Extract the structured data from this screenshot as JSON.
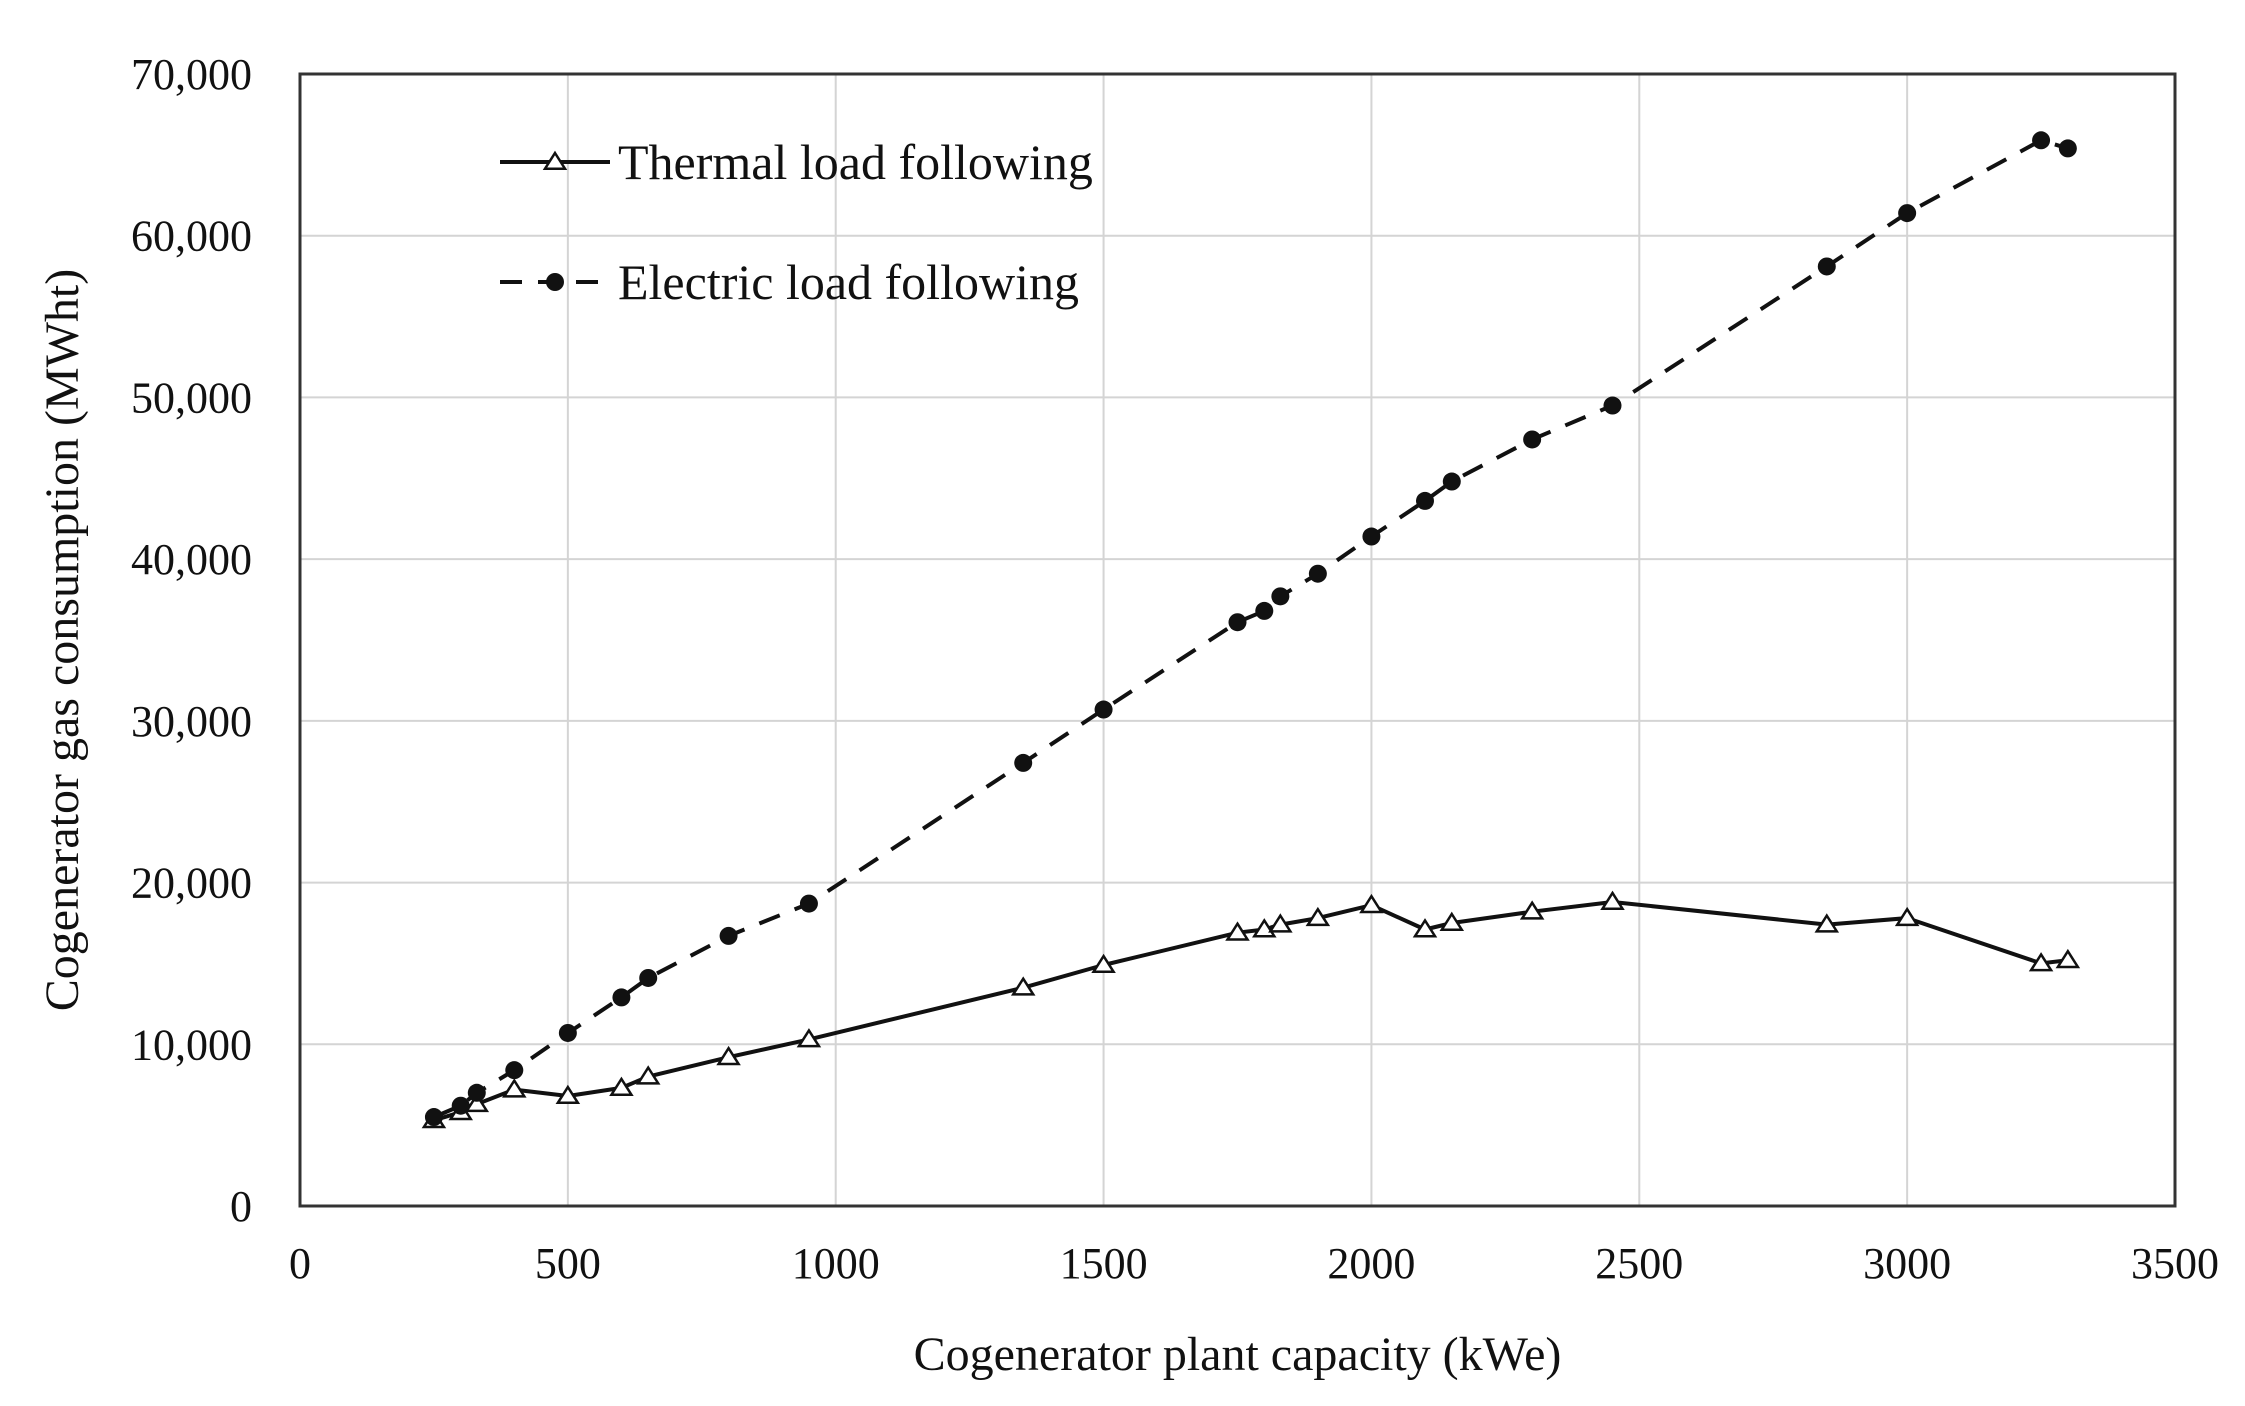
{
  "chart_data": {
    "type": "line",
    "title": "",
    "xlabel": "Cogenerator  plant  capacity  (kWe)",
    "ylabel": "Cogenerator  gas  consumption  (MWht)",
    "xlim": [
      0,
      3500
    ],
    "ylim": [
      0,
      70000
    ],
    "x_ticks": [
      0,
      500,
      1000,
      1500,
      2000,
      2500,
      3000,
      3500
    ],
    "x_tick_labels": [
      "0",
      "500",
      "1000",
      "1500",
      "2000",
      "2500",
      "3000",
      "3500"
    ],
    "y_ticks": [
      0,
      10000,
      20000,
      30000,
      40000,
      50000,
      60000,
      70000
    ],
    "y_tick_labels": [
      "0",
      "10,000",
      "20,000",
      "30,000",
      "40,000",
      "50,000",
      "60,000",
      "70,000"
    ],
    "grid": true,
    "legend_position": "top-left",
    "series": [
      {
        "name": "Thermal load following",
        "style": "solid",
        "marker": "open-triangle",
        "color": "#111111",
        "x": [
          250,
          300,
          330,
          400,
          500,
          600,
          650,
          800,
          950,
          1350,
          1500,
          1750,
          1800,
          1830,
          1900,
          2000,
          2100,
          2150,
          2300,
          2450,
          2850,
          3000,
          3250,
          3300
        ],
        "y": [
          5300,
          5800,
          6300,
          7200,
          6800,
          7300,
          8000,
          9200,
          10300,
          13500,
          14900,
          16900,
          17100,
          17400,
          17800,
          18600,
          17100,
          17500,
          18200,
          18800,
          17400,
          17800,
          15000,
          15200
        ]
      },
      {
        "name": "Electric load following",
        "style": "dashed",
        "marker": "filled-circle",
        "color": "#111111",
        "x": [
          250,
          300,
          330,
          400,
          500,
          600,
          650,
          800,
          950,
          1350,
          1500,
          1750,
          1800,
          1830,
          1900,
          2000,
          2100,
          2150,
          2300,
          2450,
          2850,
          3000,
          3250,
          3300
        ],
        "y": [
          5500,
          6200,
          7000,
          8400,
          10700,
          12900,
          14100,
          16700,
          18700,
          27400,
          30700,
          36100,
          36800,
          37700,
          39100,
          41400,
          43600,
          44800,
          47400,
          49500,
          58100,
          61400,
          65900,
          65400
        ]
      }
    ]
  }
}
